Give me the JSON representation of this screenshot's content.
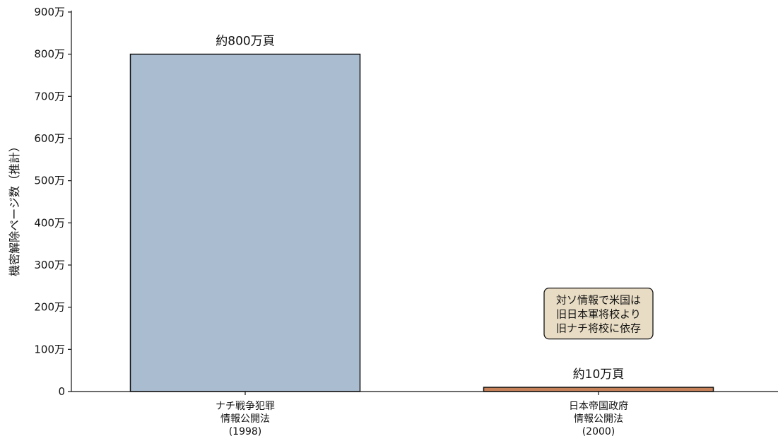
{
  "chart_data": {
    "type": "bar",
    "title": "",
    "xlabel": "",
    "ylabel": "機密解除ページ数（推計）",
    "ylim": [
      0,
      9000000
    ],
    "yticks": [
      {
        "value": 0,
        "label": "0"
      },
      {
        "value": 1000000,
        "label": "100万"
      },
      {
        "value": 2000000,
        "label": "200万"
      },
      {
        "value": 3000000,
        "label": "300万"
      },
      {
        "value": 4000000,
        "label": "400万"
      },
      {
        "value": 5000000,
        "label": "500万"
      },
      {
        "value": 6000000,
        "label": "600万"
      },
      {
        "value": 7000000,
        "label": "700万"
      },
      {
        "value": 8000000,
        "label": "800万"
      },
      {
        "value": 9000000,
        "label": "900万"
      }
    ],
    "categories": [
      [
        "ナチ戦争犯罪",
        "情報公開法",
        "(1998)"
      ],
      [
        "日本帝国政府",
        "情報公開法",
        "(2000)"
      ]
    ],
    "values": [
      8000000,
      100000
    ],
    "bar_colors": [
      "#a9bcd0",
      "#c8825a"
    ],
    "data_labels": [
      "約800万頁",
      "約10万頁"
    ],
    "annotation": {
      "lines": [
        "対ソ情報で米国は",
        "旧日本軍将校より",
        "旧ナチ将校に依存"
      ],
      "anchor_value": 1800000,
      "bg_color": "#e8dcc4"
    },
    "grid": false,
    "legend": "none"
  }
}
